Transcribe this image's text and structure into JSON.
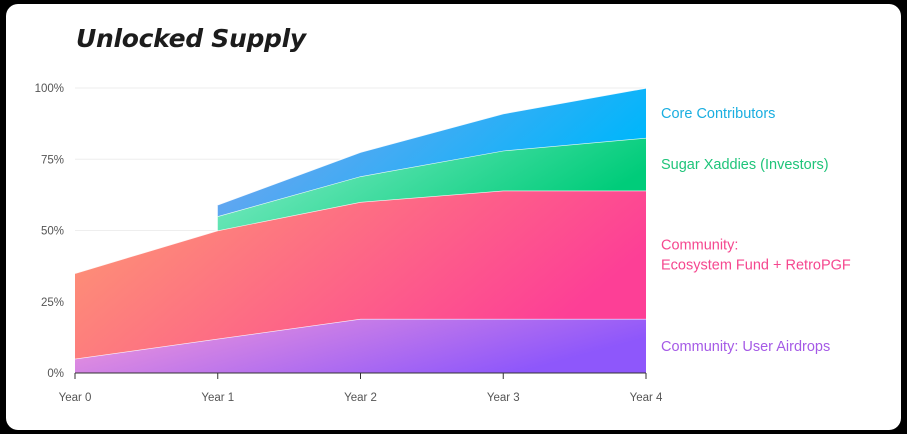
{
  "title": "Unlocked Supply",
  "chart_data": {
    "type": "area",
    "stacked": true,
    "title": "Unlocked Supply",
    "x": [
      0,
      1,
      2,
      3,
      4
    ],
    "x_tick_labels": [
      "Year 0",
      "Year 1",
      "Year 2",
      "Year 3",
      "Year 4"
    ],
    "y_tick_labels": [
      "0%",
      "25%",
      "50%",
      "75%",
      "100%"
    ],
    "ylim": [
      0,
      100
    ],
    "ytick_values": [
      0,
      25,
      50,
      75,
      100
    ],
    "grid": "horizontal",
    "legend": "right, labels aligned with each band",
    "series": [
      {
        "name": "Community: User Airdrops",
        "label_lines": [
          "Community: User Airdrops"
        ],
        "values": [
          5,
          12,
          19,
          19,
          19
        ],
        "colors": [
          "#f59ad8",
          "#8e57fb"
        ],
        "label_color": "#a55ae6"
      },
      {
        "name": "Community: Ecosystem Fund + RetroPGF",
        "label_lines": [
          "Community:",
          "Ecosystem Fund + RetroPGF"
        ],
        "values": [
          30,
          38,
          41,
          45,
          45
        ],
        "colors": [
          "#fd9a72",
          "#fd3f96"
        ],
        "label_color": "#f5478f"
      },
      {
        "name": "Sugar Xaddies (Investors)",
        "label_lines": [
          "Sugar Xaddies (Investors)"
        ],
        "values": [
          null,
          5,
          9,
          14,
          18.5
        ],
        "colors": [
          "#8beecb",
          "#00cc7a"
        ],
        "label_color": "#1fc47a"
      },
      {
        "name": "Core Contributors",
        "label_lines": [
          "Core Contributors"
        ],
        "values": [
          null,
          4,
          8.5,
          13,
          17.5
        ],
        "colors": [
          "#86a0ec",
          "#00b6fb"
        ],
        "label_color": "#1aaee0"
      }
    ]
  }
}
